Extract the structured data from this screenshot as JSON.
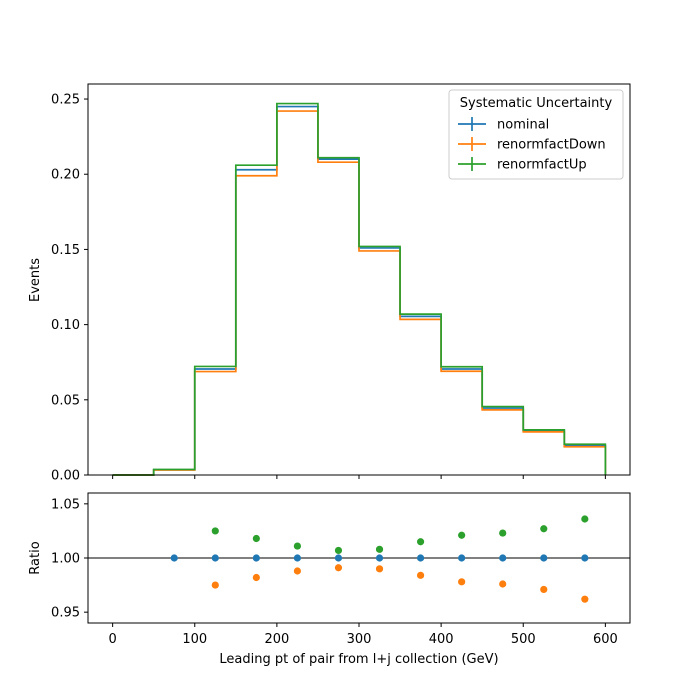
{
  "chart_data": [
    {
      "type": "step",
      "panel": "main",
      "ylabel": "Events",
      "xlim": [
        -30,
        630
      ],
      "ylim": [
        0,
        0.26
      ],
      "xticks": [
        0,
        100,
        200,
        300,
        400,
        500,
        600
      ],
      "yticks": [
        "0.00",
        "0.05",
        "0.10",
        "0.15",
        "0.20",
        "0.25"
      ],
      "bin_edges": [
        0,
        50,
        100,
        150,
        200,
        250,
        300,
        350,
        400,
        450,
        500,
        550,
        600
      ],
      "legend": {
        "title": "Systematic Uncertainty",
        "placement": "top-right"
      },
      "series": [
        {
          "name": "nominal",
          "color": "#1f77b4",
          "values": [
            0.0,
            0.0035,
            0.0705,
            0.203,
            0.245,
            0.21,
            0.151,
            0.1055,
            0.0705,
            0.0445,
            0.0295,
            0.0195
          ]
        },
        {
          "name": "renormfactDown",
          "color": "#ff7f0e",
          "values": [
            0.0,
            0.0033,
            0.0688,
            0.199,
            0.242,
            0.208,
            0.149,
            0.1035,
            0.069,
            0.0433,
            0.0287,
            0.0188
          ]
        },
        {
          "name": "renormfactUp",
          "color": "#2ca02c",
          "values": [
            0.0,
            0.0037,
            0.0722,
            0.206,
            0.247,
            0.211,
            0.152,
            0.107,
            0.072,
            0.0455,
            0.03,
            0.0205
          ]
        }
      ]
    },
    {
      "type": "scatter",
      "panel": "ratio",
      "xlabel": "Leading pt of pair from l+j collection (GeV)",
      "ylabel": "Ratio",
      "xlim": [
        -30,
        630
      ],
      "ylim": [
        0.94,
        1.06
      ],
      "yticks": [
        "0.95",
        "1.00",
        "1.05"
      ],
      "reference_line": 1.0,
      "series": [
        {
          "name": "nominal",
          "color": "#1f77b4",
          "x": [
            75,
            125,
            175,
            225,
            275,
            325,
            375,
            425,
            475,
            525,
            575
          ],
          "y": [
            1.0,
            1.0,
            1.0,
            1.0,
            1.0,
            1.0,
            1.0,
            1.0,
            1.0,
            1.0,
            1.0
          ]
        },
        {
          "name": "renormfactDown",
          "color": "#ff7f0e",
          "x": [
            125,
            175,
            225,
            275,
            325,
            375,
            425,
            475,
            525,
            575
          ],
          "y": [
            0.975,
            0.982,
            0.988,
            0.991,
            0.99,
            0.984,
            0.978,
            0.976,
            0.971,
            0.962
          ]
        },
        {
          "name": "renormfactUp",
          "color": "#2ca02c",
          "x": [
            125,
            175,
            225,
            275,
            325,
            375,
            425,
            475,
            525,
            575
          ],
          "y": [
            1.025,
            1.018,
            1.011,
            1.007,
            1.008,
            1.015,
            1.021,
            1.023,
            1.027,
            1.036
          ]
        }
      ]
    }
  ]
}
